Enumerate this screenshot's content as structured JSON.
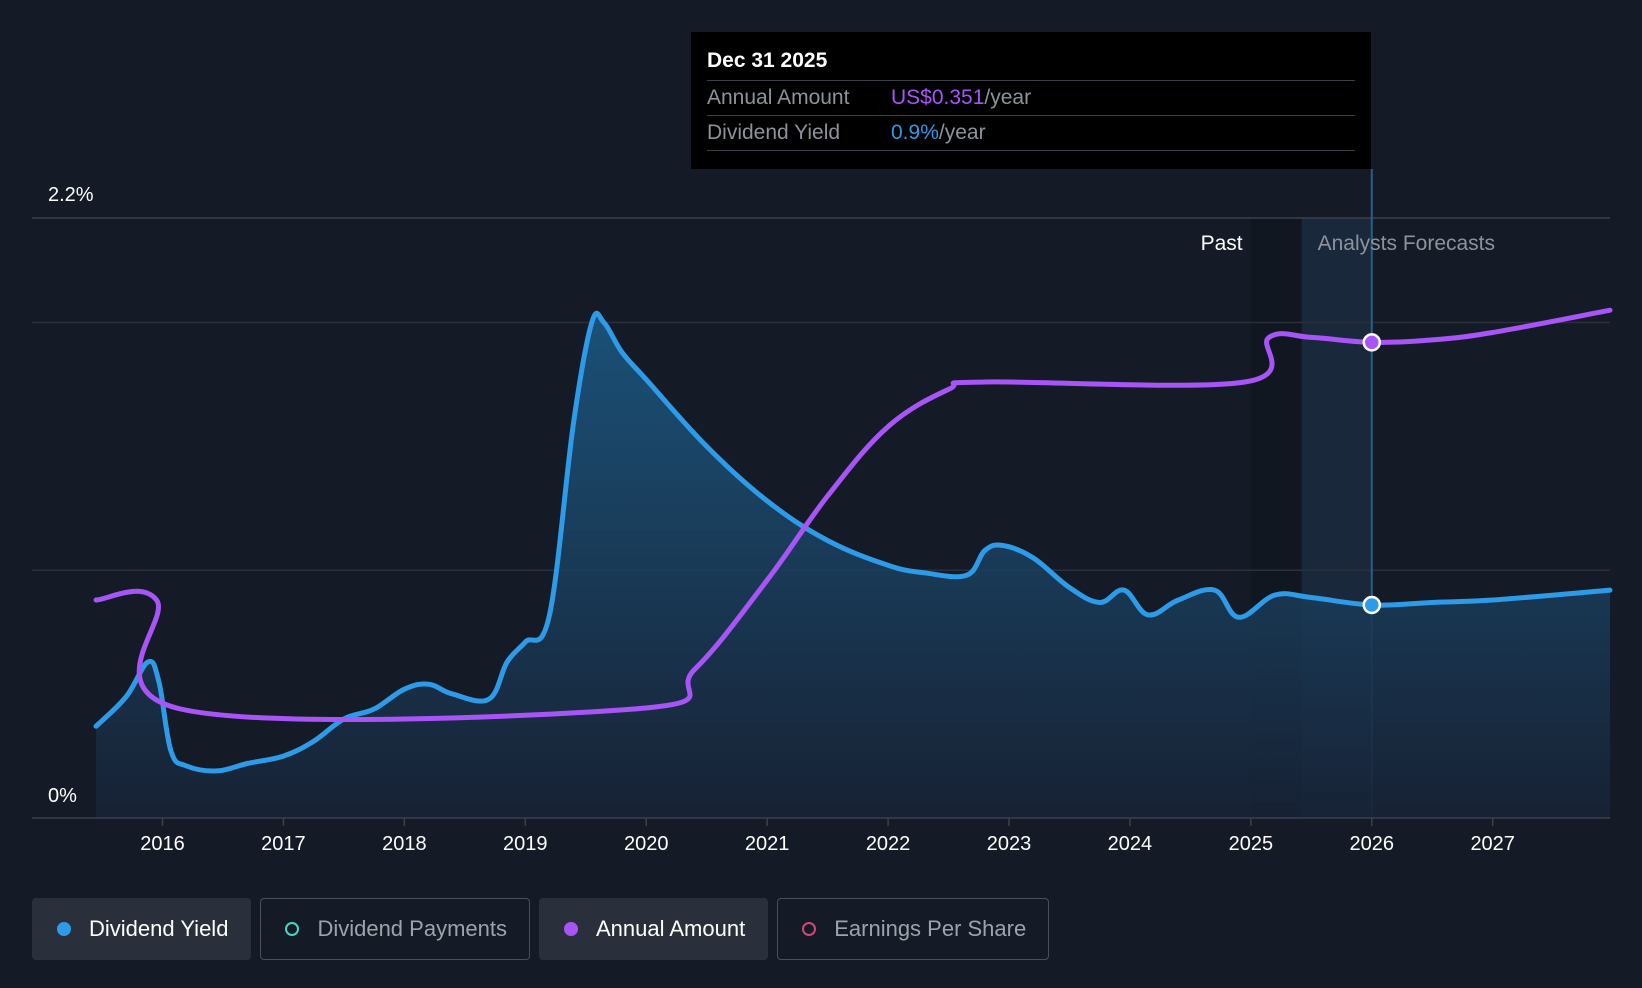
{
  "tooltip": {
    "date": "Dec 31 2025",
    "rows": [
      {
        "label": "Annual Amount",
        "value": "US$0.351",
        "unit": "/year"
      },
      {
        "label": "Dividend Yield",
        "value": "0.9%",
        "unit": "/year"
      }
    ]
  },
  "legend": [
    {
      "label": "Dividend Yield",
      "color": "#2d9be8",
      "active": true,
      "filled": true
    },
    {
      "label": "Dividend Payments",
      "color": "#4fd1c5",
      "active": false,
      "filled": false
    },
    {
      "label": "Annual Amount",
      "color": "#a855f7",
      "active": true,
      "filled": true
    },
    {
      "label": "Earnings Per Share",
      "color": "#d1467a",
      "active": false,
      "filled": false
    }
  ],
  "chart_data": {
    "type": "line",
    "y_labels": {
      "top": "2.2%",
      "bottom": "0%"
    },
    "ylim": [
      0,
      2.2
    ],
    "xlim": [
      2015.45,
      2027.97
    ],
    "x_ticks": [
      2016,
      2017,
      2018,
      2019,
      2020,
      2021,
      2022,
      2023,
      2024,
      2025,
      2026,
      2027
    ],
    "region_labels": {
      "past": "Past",
      "forecast": "Analysts Forecasts"
    },
    "past_end": 2025.0,
    "forecast_start": 2025.42,
    "highlight_x": 2026.0,
    "series": [
      {
        "name": "Dividend Yield",
        "color": "#2d9be8",
        "points": [
          [
            2015.45,
            0.37
          ],
          [
            2015.7,
            0.49
          ],
          [
            2015.88,
            0.63
          ],
          [
            2015.97,
            0.55
          ],
          [
            2016.07,
            0.27
          ],
          [
            2016.2,
            0.21
          ],
          [
            2016.45,
            0.19
          ],
          [
            2016.7,
            0.22
          ],
          [
            2017.0,
            0.25
          ],
          [
            2017.25,
            0.31
          ],
          [
            2017.5,
            0.4
          ],
          [
            2017.75,
            0.44
          ],
          [
            2018.0,
            0.52
          ],
          [
            2018.2,
            0.54
          ],
          [
            2018.4,
            0.5
          ],
          [
            2018.7,
            0.48
          ],
          [
            2018.85,
            0.63
          ],
          [
            2019.0,
            0.71
          ],
          [
            2019.2,
            0.82
          ],
          [
            2019.4,
            1.6
          ],
          [
            2019.55,
            2.0
          ],
          [
            2019.65,
            2.0
          ],
          [
            2019.8,
            1.88
          ],
          [
            2020.0,
            1.77
          ],
          [
            2020.5,
            1.5
          ],
          [
            2021.0,
            1.28
          ],
          [
            2021.5,
            1.12
          ],
          [
            2022.0,
            1.02
          ],
          [
            2022.3,
            0.99
          ],
          [
            2022.65,
            0.98
          ],
          [
            2022.8,
            1.08
          ],
          [
            2022.95,
            1.1
          ],
          [
            2023.2,
            1.05
          ],
          [
            2023.5,
            0.93
          ],
          [
            2023.75,
            0.87
          ],
          [
            2023.95,
            0.92
          ],
          [
            2024.15,
            0.82
          ],
          [
            2024.4,
            0.88
          ],
          [
            2024.7,
            0.92
          ],
          [
            2024.9,
            0.81
          ],
          [
            2025.2,
            0.9
          ],
          [
            2025.5,
            0.89
          ],
          [
            2026.0,
            0.86
          ],
          [
            2026.5,
            0.87
          ],
          [
            2027.0,
            0.88
          ],
          [
            2027.97,
            0.92
          ]
        ],
        "highlight_value": 0.86
      },
      {
        "name": "Annual Amount",
        "color": "#a855f7",
        "points": [
          [
            2015.45,
            0.88
          ],
          [
            2015.95,
            0.88
          ],
          [
            2016.15,
            0.44
          ],
          [
            2019.9,
            0.44
          ],
          [
            2020.4,
            0.6
          ],
          [
            2021.0,
            0.96
          ],
          [
            2021.5,
            1.3
          ],
          [
            2022.0,
            1.58
          ],
          [
            2022.5,
            1.73
          ],
          [
            2022.8,
            1.76
          ],
          [
            2024.95,
            1.76
          ],
          [
            2025.15,
            1.94
          ],
          [
            2025.5,
            1.94
          ],
          [
            2026.0,
            1.92
          ],
          [
            2026.5,
            1.93
          ],
          [
            2027.0,
            1.96
          ],
          [
            2027.97,
            2.05
          ]
        ],
        "highlight_value": 1.92
      }
    ]
  }
}
